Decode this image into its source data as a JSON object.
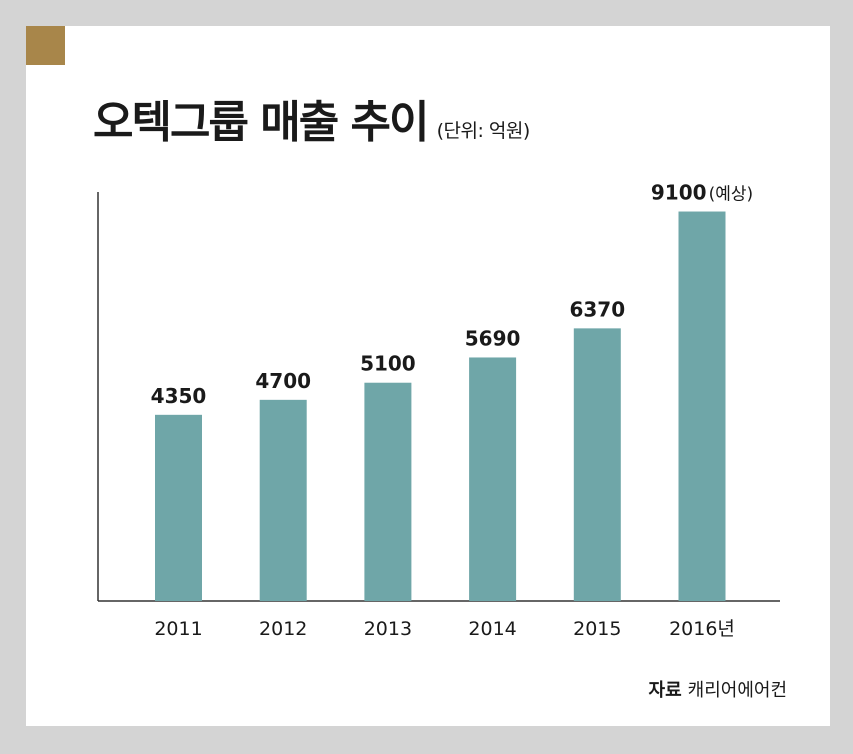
{
  "title": "오텍그룹 매출 추이",
  "subtitle": "(단위: 억원)",
  "source": {
    "label": "자료",
    "value": "캐리어에어컨"
  },
  "colors": {
    "bar": "#6fa6a8",
    "accent_square": "#a8864a",
    "axis": "#333333"
  },
  "chart_data": {
    "type": "bar",
    "categories": [
      "2011",
      "2012",
      "2013",
      "2014",
      "2015",
      "2016년"
    ],
    "values": [
      4350,
      4700,
      5100,
      5690,
      6370,
      9100
    ],
    "value_labels": [
      "4350",
      "4700",
      "5100",
      "5690",
      "6370",
      "9100"
    ],
    "value_label_suffixes": [
      "",
      "",
      "",
      "",
      "",
      "(예상)"
    ],
    "title": "오텍그룹 매출 추이",
    "ylabel": "",
    "ylim": [
      0,
      10000
    ],
    "grid": false,
    "legend": "none"
  }
}
